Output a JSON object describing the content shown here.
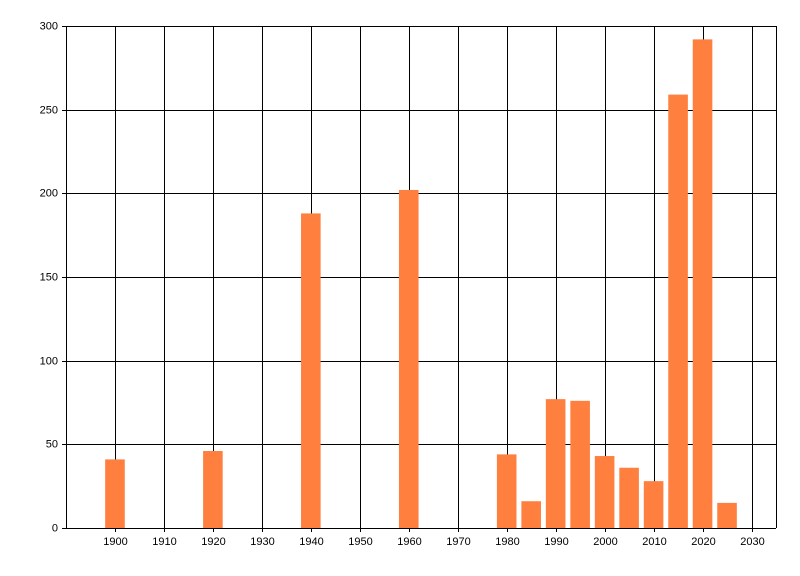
{
  "chart_data": {
    "type": "bar",
    "x": [
      1900,
      1920,
      1940,
      1960,
      1980,
      1985,
      1990,
      1995,
      2000,
      2005,
      2010,
      2015,
      2020,
      2025
    ],
    "values": [
      41,
      46,
      188,
      202,
      44,
      16,
      77,
      76,
      43,
      36,
      28,
      259,
      292,
      15
    ],
    "color": "#ff7f3f",
    "xlim": [
      1890,
      2035
    ],
    "xticks": [
      1900,
      1910,
      1920,
      1930,
      1940,
      1950,
      1960,
      1970,
      1980,
      1990,
      2000,
      2010,
      2020,
      2030
    ],
    "ylim": [
      0,
      300
    ],
    "yticks": [
      0,
      50,
      100,
      150,
      200,
      250,
      300
    ],
    "grid": true
  }
}
